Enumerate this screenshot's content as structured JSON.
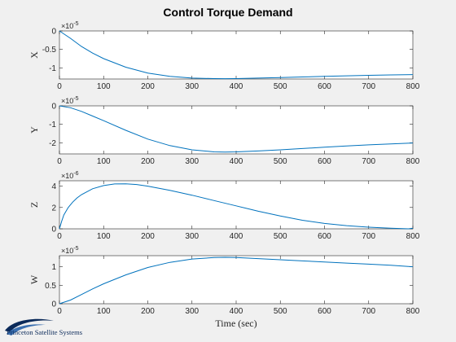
{
  "figure": {
    "title": "Control Torque Demand",
    "logo_text": "Princeton Satellite Systems"
  },
  "chart_data": [
    {
      "type": "line",
      "ylabel": "X",
      "xlabel": "",
      "exponent": "×10",
      "exponent_power": "-5",
      "xlim": [
        0,
        800
      ],
      "ylim": [
        -1.3,
        0
      ],
      "xticks": [
        "0",
        "100",
        "200",
        "300",
        "400",
        "500",
        "600",
        "700",
        "800"
      ],
      "yticks": [
        {
          "v": 0,
          "t": "0"
        },
        {
          "v": -0.5,
          "t": "-0.5"
        },
        {
          "v": -1,
          "t": "-1"
        }
      ],
      "series": [
        {
          "x": [
            0,
            25,
            50,
            75,
            100,
            150,
            200,
            250,
            300,
            350,
            375,
            400,
            450,
            500,
            550,
            600,
            650,
            700,
            750,
            800
          ],
          "y": [
            0,
            -0.2,
            -0.42,
            -0.6,
            -0.75,
            -0.98,
            -1.14,
            -1.23,
            -1.275,
            -1.29,
            -1.292,
            -1.288,
            -1.275,
            -1.26,
            -1.245,
            -1.23,
            -1.215,
            -1.2,
            -1.19,
            -1.18
          ]
        }
      ]
    },
    {
      "type": "line",
      "ylabel": "Y",
      "xlabel": "",
      "exponent": "×10",
      "exponent_power": "-5",
      "xlim": [
        0,
        800
      ],
      "ylim": [
        -2.6,
        0
      ],
      "xticks": [
        "0",
        "100",
        "200",
        "300",
        "400",
        "500",
        "600",
        "700",
        "800"
      ],
      "yticks": [
        {
          "v": 0,
          "t": "0"
        },
        {
          "v": -1,
          "t": "-1"
        },
        {
          "v": -2,
          "t": "-2"
        }
      ],
      "series": [
        {
          "x": [
            0,
            25,
            50,
            75,
            100,
            150,
            200,
            250,
            300,
            350,
            375,
            400,
            450,
            500,
            550,
            600,
            650,
            700,
            750,
            800
          ],
          "y": [
            0,
            -0.1,
            -0.3,
            -0.55,
            -0.8,
            -1.32,
            -1.8,
            -2.15,
            -2.38,
            -2.49,
            -2.5,
            -2.49,
            -2.44,
            -2.38,
            -2.31,
            -2.24,
            -2.17,
            -2.11,
            -2.06,
            -2.01
          ]
        }
      ]
    },
    {
      "type": "line",
      "ylabel": "Z",
      "xlabel": "",
      "exponent": "×10",
      "exponent_power": "-6",
      "xlim": [
        0,
        800
      ],
      "ylim": [
        0,
        4.5
      ],
      "xticks": [
        "0",
        "100",
        "200",
        "300",
        "400",
        "500",
        "600",
        "700",
        "800"
      ],
      "yticks": [
        {
          "v": 0,
          "t": "0"
        },
        {
          "v": 2,
          "t": "2"
        },
        {
          "v": 4,
          "t": "4"
        }
      ],
      "series": [
        {
          "x": [
            0,
            5,
            10,
            20,
            30,
            40,
            50,
            75,
            100,
            125,
            150,
            175,
            200,
            250,
            300,
            350,
            400,
            450,
            500,
            550,
            600,
            650,
            700,
            750,
            790,
            800
          ],
          "y": [
            0,
            0.7,
            1.3,
            2.0,
            2.5,
            2.9,
            3.2,
            3.75,
            4.05,
            4.2,
            4.22,
            4.15,
            4.0,
            3.6,
            3.15,
            2.65,
            2.15,
            1.65,
            1.2,
            0.8,
            0.5,
            0.3,
            0.15,
            0.05,
            0.0,
            0.05
          ]
        }
      ]
    },
    {
      "type": "line",
      "ylabel": "W",
      "xlabel": "Time (sec)",
      "exponent": "×10",
      "exponent_power": "-5",
      "xlim": [
        0,
        800
      ],
      "ylim": [
        0,
        1.3
      ],
      "xticks": [
        "0",
        "100",
        "200",
        "300",
        "400",
        "500",
        "600",
        "700",
        "800"
      ],
      "yticks": [
        {
          "v": 0,
          "t": "0"
        },
        {
          "v": 0.5,
          "t": "0.5"
        },
        {
          "v": 1,
          "t": "1"
        }
      ],
      "series": [
        {
          "x": [
            0,
            25,
            50,
            75,
            100,
            150,
            200,
            250,
            300,
            350,
            375,
            400,
            450,
            500,
            550,
            600,
            650,
            700,
            750,
            800
          ],
          "y": [
            0,
            0.1,
            0.25,
            0.4,
            0.54,
            0.78,
            0.98,
            1.12,
            1.21,
            1.25,
            1.255,
            1.25,
            1.22,
            1.19,
            1.16,
            1.13,
            1.1,
            1.07,
            1.04,
            1.0
          ]
        }
      ]
    }
  ]
}
